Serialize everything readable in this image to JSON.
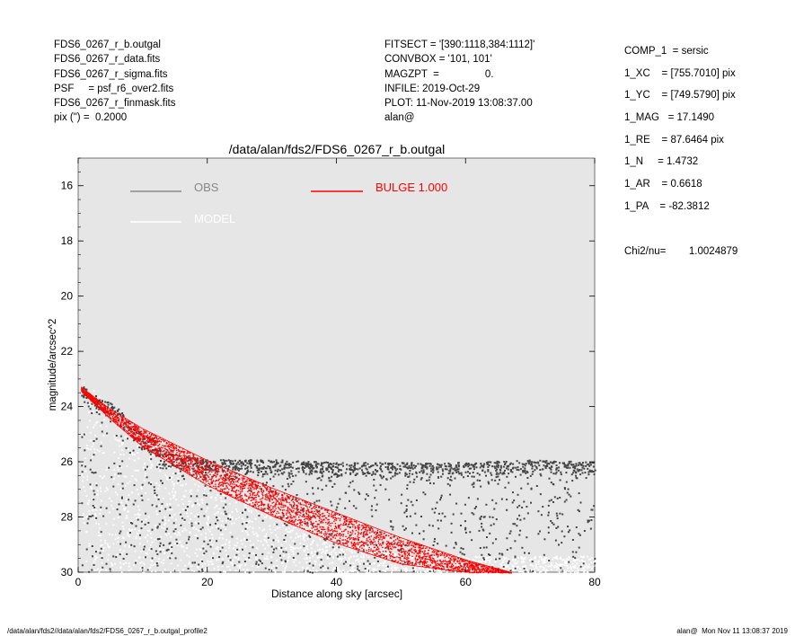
{
  "header_left": [
    "FDS6_0267_r_b.outgal",
    "FDS6_0267_r_data.fits",
    "FDS6_0267_r_sigma.fits",
    "PSF     = psf_r6_over2.fits",
    "FDS6_0267_r_finmask.fits",
    "pix (\") =  0.2000"
  ],
  "header_mid": [
    "FITSECT = '[390:1118,384:1112]'",
    "CONVBOX = '101, 101'",
    "MAGZPT  =                0.",
    "INFILE: 2019-Oct-29",
    "PLOT: 11-Nov-2019 13:08:37.00",
    "alan@"
  ],
  "params": [
    "COMP_1  = sersic",
    "1_XC    = [755.7010] pix",
    "1_YC    = [749.5790] pix",
    "1_MAG   = 17.1490",
    "1_RE    = 87.6464 pix",
    "1_N     = 1.4732",
    "1_AR    = 0.6618",
    "1_PA    = -82.3812"
  ],
  "chi2": "Chi2/nu=        1.0024879",
  "footer_left": "/data/alan/fds2//data/alan/fds2/FDS6_0267_r_b.outgal_profile2",
  "footer_right": "alan@  Mon Nov 11 13:08:37 2019",
  "colors": {
    "background": "#e6e6e6",
    "obs": "#444444",
    "model": "#ffffff",
    "bulge": "#ff0000",
    "obs_legend": "#888888"
  },
  "chart_data": {
    "type": "scatter",
    "title": "/data/alan/fds2/FDS6_0267_r_b.outgal",
    "xlabel": "Distance along sky [arcsec]",
    "ylabel": "magnitude/arcsec^2",
    "xlim": [
      0,
      80
    ],
    "ylim": [
      30,
      15
    ],
    "y_inverted": true,
    "x_ticks": [
      "0",
      "20",
      "40",
      "60",
      "80"
    ],
    "y_ticks": [
      "16",
      "18",
      "20",
      "22",
      "24",
      "26",
      "28",
      "30"
    ],
    "legend": [
      {
        "label": "OBS",
        "color": "#888888"
      },
      {
        "label": "MODEL",
        "color": "#ffffff"
      },
      {
        "label": "BULGE  1.000",
        "color": "#ff0000"
      }
    ],
    "series": [
      {
        "name": "OBS",
        "color": "#444444",
        "points": [
          [
            0.5,
            23.5
          ],
          [
            2,
            23.8
          ],
          [
            4,
            24.0
          ],
          [
            6,
            24.3
          ],
          [
            8,
            24.9
          ],
          [
            10,
            25.3
          ],
          [
            15,
            25.7
          ],
          [
            20,
            25.9
          ],
          [
            30,
            25.9
          ],
          [
            40,
            26.0
          ],
          [
            50,
            26.0
          ],
          [
            60,
            26.0
          ],
          [
            70,
            25.9
          ],
          [
            80,
            26.0
          ]
        ]
      },
      {
        "name": "MODEL",
        "color": "#ffffff",
        "points": [
          [
            0.5,
            23.5
          ],
          [
            10,
            26.0
          ],
          [
            20,
            27.3
          ],
          [
            30,
            28.3
          ],
          [
            40,
            29.2
          ],
          [
            50,
            30.0
          ]
        ]
      },
      {
        "name": "BULGE  1.000",
        "color": "#ff0000",
        "envelope": {
          "x": [
            0.5,
            5,
            10,
            20,
            30,
            40,
            50,
            60,
            67
          ],
          "bright": [
            23.3,
            24.1,
            24.8,
            25.95,
            26.95,
            27.85,
            28.75,
            29.55,
            30.0
          ],
          "faint": [
            23.45,
            24.45,
            25.45,
            26.85,
            27.95,
            28.95,
            29.7,
            30.0,
            30.0
          ]
        }
      }
    ]
  }
}
